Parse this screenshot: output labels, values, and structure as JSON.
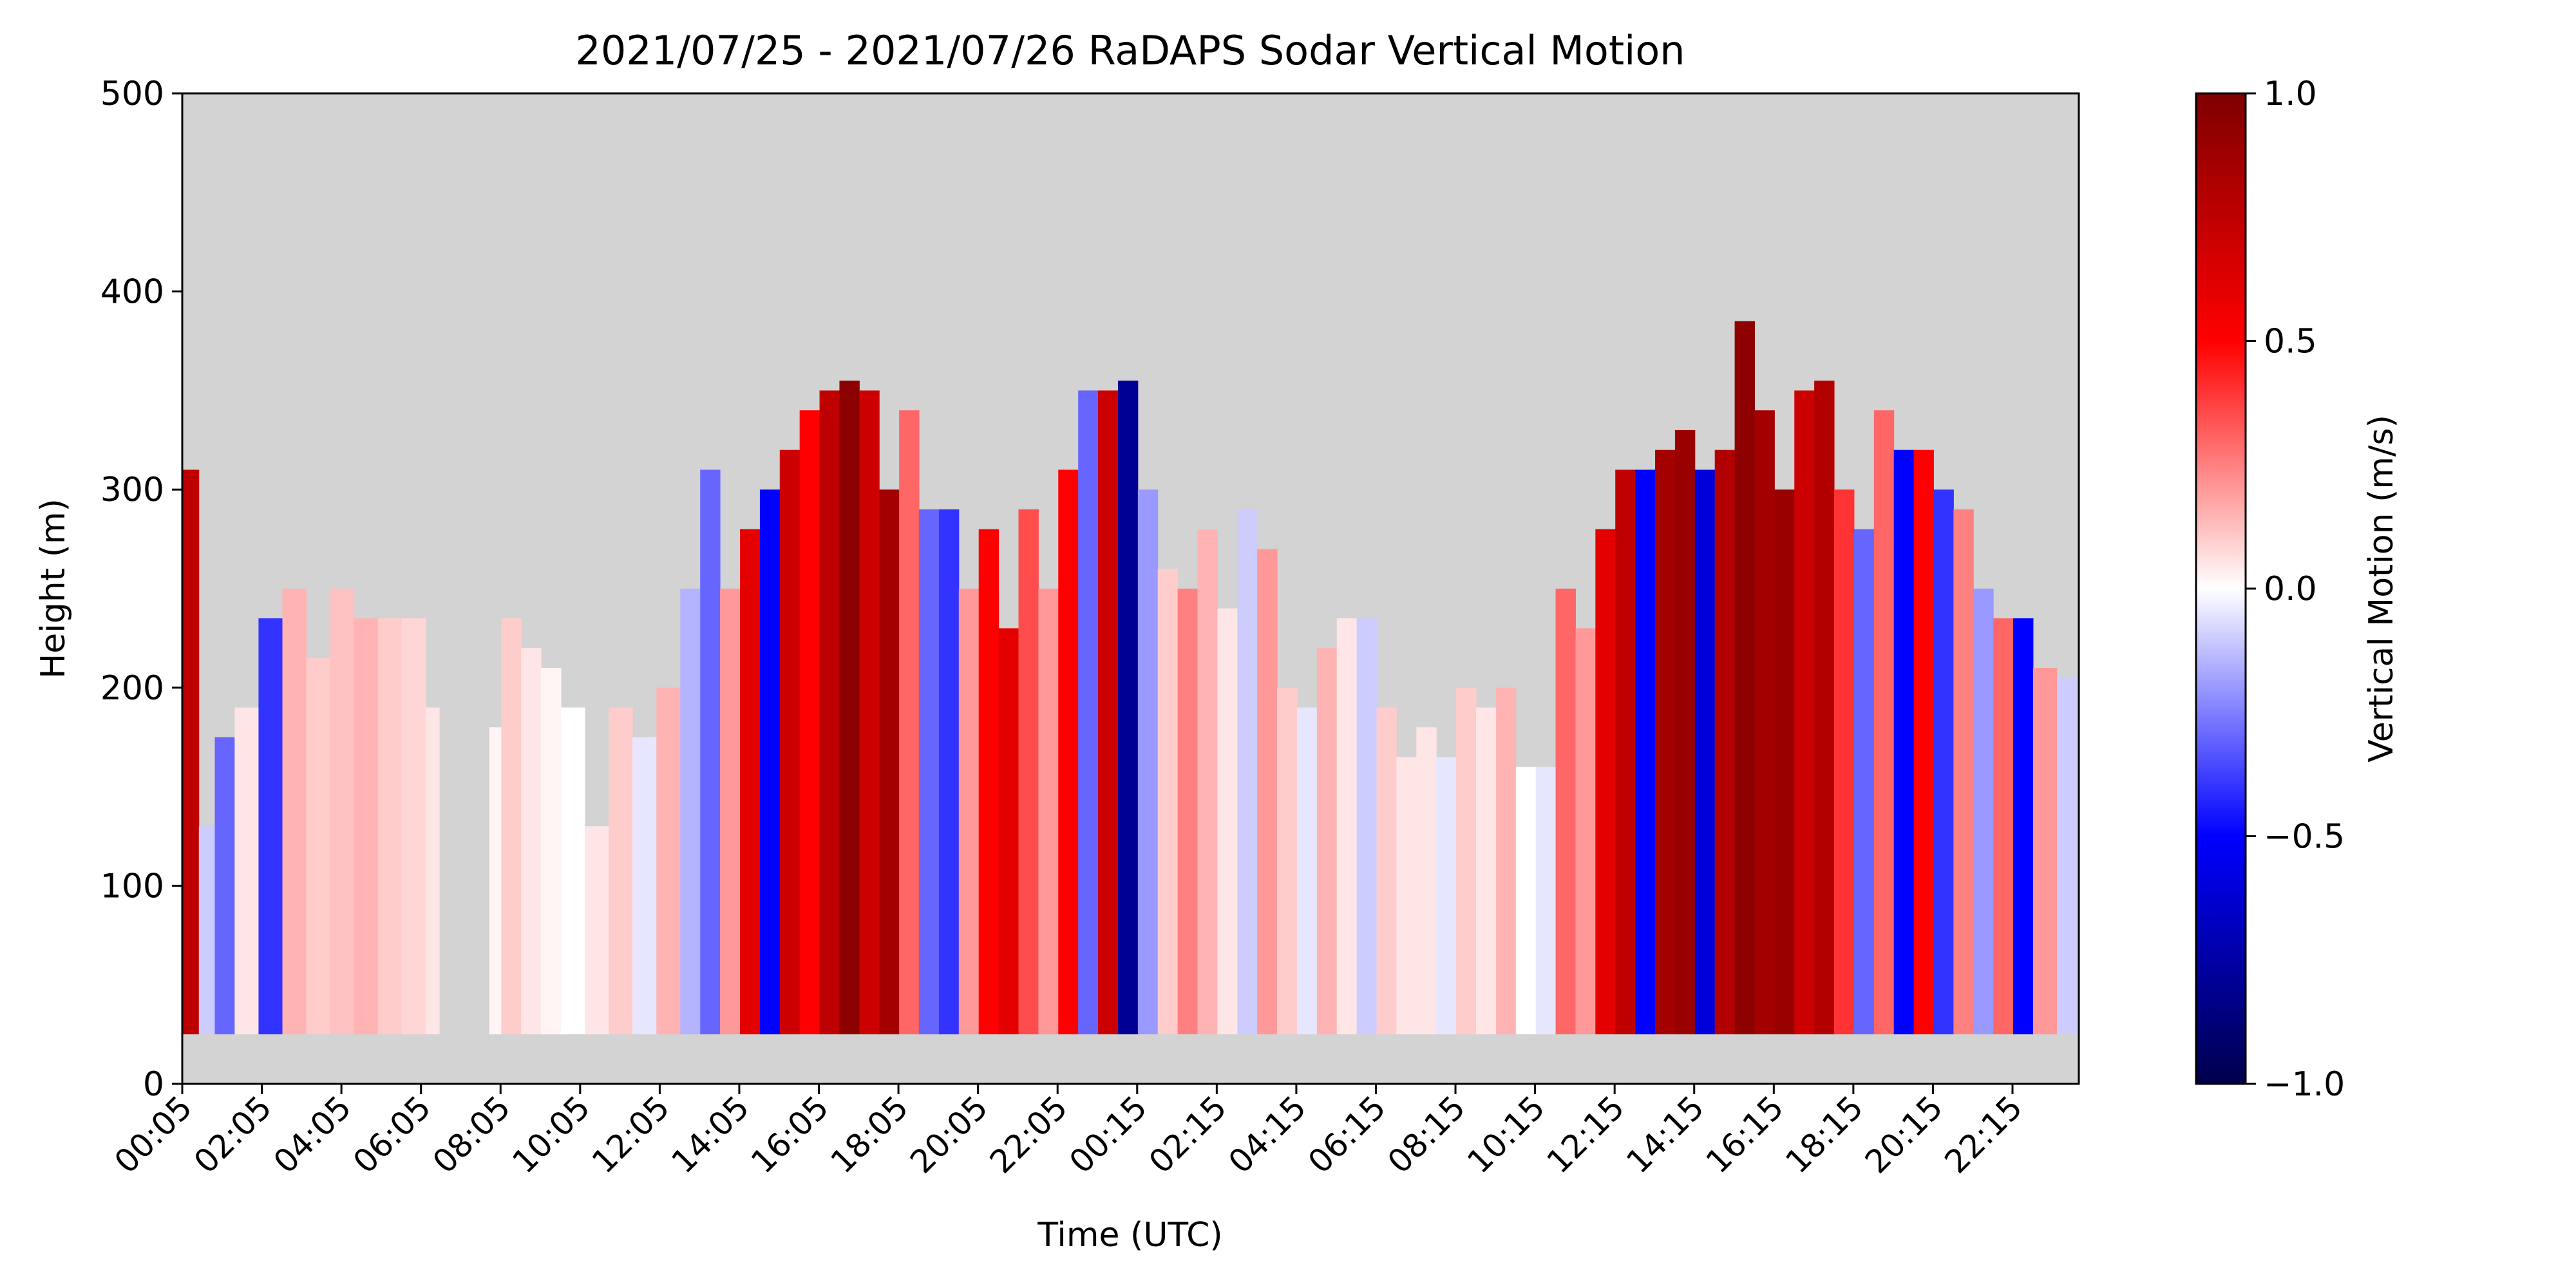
{
  "chart_data": {
    "type": "heatmap",
    "title": "2021/07/25 - 2021/07/26 RaDAPS Sodar Vertical Motion",
    "xlabel": "Time (UTC)",
    "ylabel": "Height (m)",
    "xlim_hours": [
      0.083,
      47.75
    ],
    "ylim": [
      0,
      500
    ],
    "yticks": [
      0,
      100,
      200,
      300,
      400,
      500
    ],
    "xtick_labels": [
      "00:05",
      "02:05",
      "04:05",
      "06:05",
      "08:05",
      "10:05",
      "12:05",
      "14:05",
      "16:05",
      "18:05",
      "20:05",
      "22:05",
      "00:15",
      "02:15",
      "04:15",
      "06:15",
      "08:15",
      "10:15",
      "12:15",
      "14:15",
      "16:15",
      "18:15",
      "20:15",
      "22:15"
    ],
    "background_color": "#d3d3d3",
    "grid": false,
    "colorbar": {
      "label": "Vertical Motion (m/s)",
      "min": -1.0,
      "max": 1.0,
      "ticks": [
        -1.0,
        -0.5,
        0.0,
        0.5,
        1.0
      ],
      "tick_labels": [
        "−1.0",
        "−0.5",
        "0.0",
        "0.5",
        "1.0"
      ],
      "colormap": "seismic"
    },
    "data_floor_m": 25,
    "column_tops": {
      "note_units": "top of measured data in meters, per time segment (hours since start)",
      "segments": [
        [
          0.08,
          310
        ],
        [
          0.5,
          130
        ],
        [
          0.9,
          175
        ],
        [
          1.4,
          190
        ],
        [
          2.0,
          235
        ],
        [
          2.6,
          250
        ],
        [
          3.2,
          215
        ],
        [
          3.8,
          250
        ],
        [
          4.4,
          235
        ],
        [
          5.0,
          235
        ],
        [
          5.6,
          235
        ],
        [
          6.2,
          190
        ],
        [
          7.8,
          180
        ],
        [
          8.1,
          235
        ],
        [
          8.6,
          220
        ],
        [
          9.1,
          210
        ],
        [
          9.6,
          190
        ],
        [
          10.2,
          130
        ],
        [
          10.8,
          190
        ],
        [
          11.4,
          175
        ],
        [
          12.0,
          200
        ],
        [
          12.6,
          250
        ],
        [
          13.1,
          310
        ],
        [
          13.6,
          250
        ],
        [
          14.1,
          280
        ],
        [
          14.6,
          300
        ],
        [
          15.1,
          320
        ],
        [
          15.6,
          340
        ],
        [
          16.1,
          350
        ],
        [
          16.6,
          355
        ],
        [
          17.1,
          350
        ],
        [
          17.6,
          300
        ],
        [
          18.1,
          340
        ],
        [
          18.6,
          290
        ],
        [
          19.1,
          290
        ],
        [
          19.6,
          250
        ],
        [
          20.1,
          280
        ],
        [
          20.6,
          230
        ],
        [
          21.1,
          290
        ],
        [
          21.6,
          250
        ],
        [
          22.1,
          310
        ],
        [
          22.6,
          350
        ],
        [
          23.1,
          350
        ],
        [
          23.6,
          355
        ],
        [
          24.1,
          300
        ],
        [
          24.6,
          260
        ],
        [
          25.1,
          250
        ],
        [
          25.6,
          280
        ],
        [
          26.1,
          240
        ],
        [
          26.6,
          290
        ],
        [
          27.1,
          270
        ],
        [
          27.6,
          200
        ],
        [
          28.1,
          190
        ],
        [
          28.6,
          220
        ],
        [
          29.1,
          235
        ],
        [
          29.6,
          235
        ],
        [
          30.1,
          190
        ],
        [
          30.6,
          165
        ],
        [
          31.1,
          180
        ],
        [
          31.6,
          165
        ],
        [
          32.1,
          200
        ],
        [
          32.6,
          190
        ],
        [
          33.1,
          200
        ],
        [
          33.6,
          160
        ],
        [
          34.1,
          160
        ],
        [
          34.6,
          250
        ],
        [
          35.1,
          230
        ],
        [
          35.6,
          280
        ],
        [
          36.1,
          310
        ],
        [
          36.6,
          310
        ],
        [
          37.1,
          320
        ],
        [
          37.6,
          330
        ],
        [
          38.1,
          310
        ],
        [
          38.6,
          320
        ],
        [
          39.1,
          385
        ],
        [
          39.6,
          340
        ],
        [
          40.1,
          300
        ],
        [
          40.6,
          350
        ],
        [
          41.1,
          355
        ],
        [
          41.6,
          300
        ],
        [
          42.1,
          280
        ],
        [
          42.6,
          340
        ],
        [
          43.1,
          320
        ],
        [
          43.6,
          320
        ],
        [
          44.1,
          300
        ],
        [
          44.6,
          290
        ],
        [
          45.1,
          250
        ],
        [
          45.6,
          235
        ],
        [
          46.1,
          235
        ],
        [
          46.6,
          210
        ],
        [
          47.2,
          205
        ]
      ]
    },
    "vertical_motion_columns": {
      "note_units": "representative vertical motion (m/s) per time segment matching column_tops",
      "values": [
        0.75,
        -0.1,
        -0.3,
        0.05,
        -0.4,
        0.15,
        0.1,
        0.12,
        0.15,
        0.1,
        0.08,
        0.05,
        0.02,
        0.1,
        0.05,
        0.02,
        0.0,
        0.05,
        0.1,
        -0.05,
        0.15,
        -0.15,
        -0.3,
        0.2,
        0.6,
        -0.5,
        0.7,
        0.5,
        0.75,
        0.95,
        0.7,
        0.85,
        0.3,
        -0.3,
        -0.4,
        0.2,
        0.5,
        0.6,
        0.35,
        0.2,
        0.5,
        -0.3,
        0.7,
        -0.8,
        -0.2,
        0.1,
        0.25,
        0.15,
        0.05,
        -0.1,
        0.2,
        0.1,
        -0.05,
        0.15,
        0.05,
        -0.1,
        0.1,
        0.05,
        0.05,
        -0.05,
        0.1,
        0.05,
        0.15,
        0.0,
        -0.05,
        0.3,
        0.2,
        0.6,
        0.75,
        -0.5,
        0.85,
        0.9,
        -0.6,
        0.8,
        0.95,
        0.85,
        0.9,
        0.7,
        0.8,
        0.4,
        -0.3,
        0.3,
        -0.5,
        0.5,
        -0.4,
        0.25,
        -0.2,
        0.3,
        -0.5,
        0.2,
        -0.1
      ]
    }
  }
}
